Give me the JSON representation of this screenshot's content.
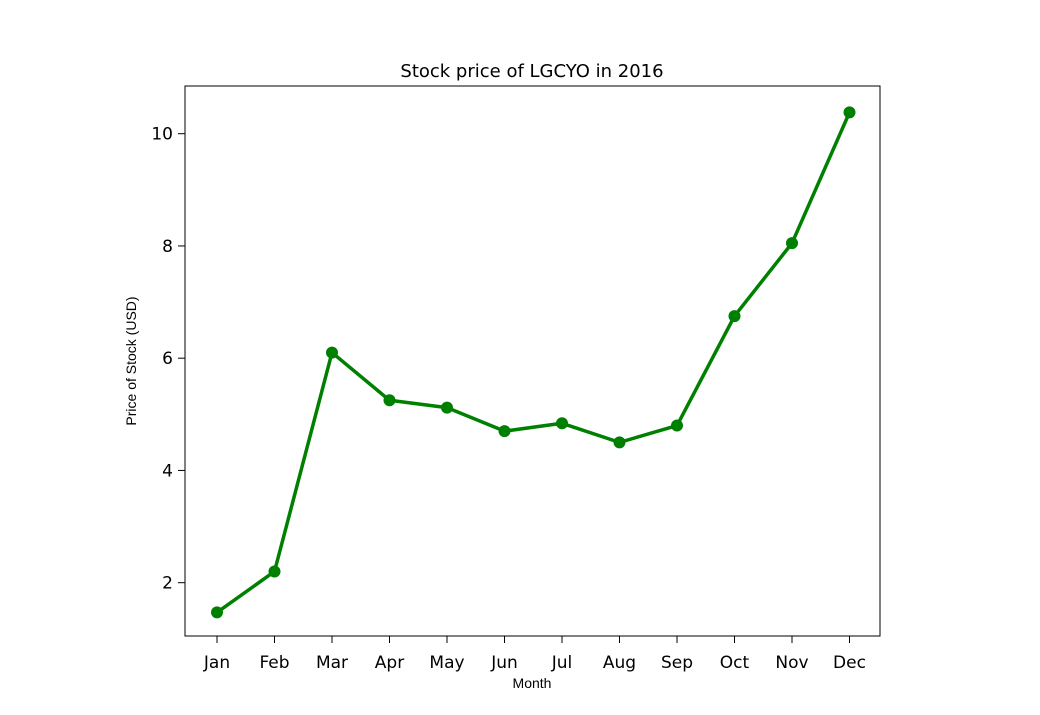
{
  "chart_data": {
    "type": "line",
    "title": "Stock price of LGCYO in 2016",
    "xlabel": "Month",
    "ylabel": "Price of Stock (USD)",
    "categories": [
      "Jan",
      "Feb",
      "Mar",
      "Apr",
      "May",
      "Jun",
      "Jul",
      "Aug",
      "Sep",
      "Oct",
      "Nov",
      "Dec"
    ],
    "values": [
      1.47,
      2.2,
      6.1,
      5.25,
      5.12,
      4.7,
      4.84,
      4.5,
      4.8,
      6.75,
      8.05,
      10.38
    ],
    "yticks": [
      "2",
      "4",
      "6",
      "8",
      "10"
    ],
    "ylim": [
      1.05,
      10.85
    ],
    "grid": false,
    "legend": "none",
    "line_color": "#008000",
    "marker": "circle"
  }
}
